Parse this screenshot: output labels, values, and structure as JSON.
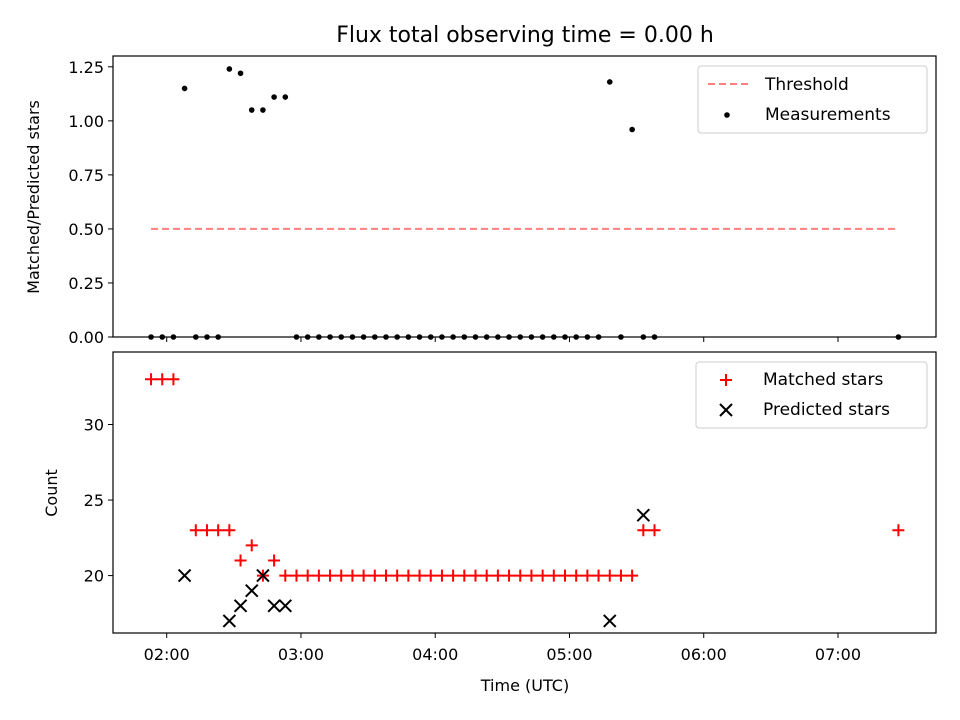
{
  "chart_data": [
    {
      "type": "scatter",
      "title": "Flux total observing time = 0.00 h",
      "xlabel": "",
      "ylabel": "Matched/Predicted stars",
      "xlim_hours": [
        1.6,
        7.73
      ],
      "ylim": [
        0,
        1.3
      ],
      "yticks": [
        0,
        0.25,
        0.5,
        0.75,
        1.0,
        1.25
      ],
      "ytick_labels": [
        "0.00",
        "0.25",
        "0.50",
        "0.75",
        "1.00",
        "1.25"
      ],
      "legend": {
        "placement": "top-right",
        "entries": [
          "Threshold",
          "Measurements"
        ]
      },
      "series": [
        {
          "name": "Threshold",
          "style": "dashed-line",
          "color": "#ff7f7f",
          "x": [
            "01:53",
            "07:27"
          ],
          "y": [
            0.5,
            0.5
          ]
        },
        {
          "name": "Measurements",
          "style": "dot",
          "color": "#000000",
          "x": [
            "01:53",
            "01:58",
            "02:03",
            "02:08",
            "02:13",
            "02:18",
            "02:23",
            "02:28",
            "02:33",
            "02:38",
            "02:43",
            "02:48",
            "02:53",
            "02:58",
            "03:03",
            "03:08",
            "03:13",
            "03:18",
            "03:23",
            "03:28",
            "03:33",
            "03:38",
            "03:43",
            "03:48",
            "03:53",
            "03:58",
            "04:03",
            "04:08",
            "04:13",
            "04:18",
            "04:23",
            "04:28",
            "04:33",
            "04:38",
            "04:43",
            "04:48",
            "04:53",
            "04:58",
            "05:03",
            "05:08",
            "05:13",
            "05:18",
            "05:23",
            "05:28",
            "05:33",
            "05:38",
            "07:27"
          ],
          "y": [
            0,
            0,
            0,
            1.15,
            0,
            0,
            0,
            1.24,
            1.22,
            1.05,
            1.05,
            1.11,
            1.11,
            0,
            0,
            0,
            0,
            0,
            0,
            0,
            0,
            0,
            0,
            0,
            0,
            0,
            0,
            0,
            0,
            0,
            0,
            0,
            0,
            0,
            0,
            0,
            0,
            0,
            0,
            0,
            0,
            1.18,
            0,
            0.96,
            0,
            0,
            0
          ]
        }
      ]
    },
    {
      "type": "scatter",
      "title": "",
      "xlabel": "Time (UTC)",
      "ylabel": "Count",
      "xlim_hours": [
        1.6,
        7.73
      ],
      "ylim": [
        16.2,
        34.8
      ],
      "yticks": [
        20,
        25,
        30
      ],
      "ytick_labels": [
        "20",
        "25",
        "30"
      ],
      "xticks": [
        "02:00",
        "03:00",
        "04:00",
        "05:00",
        "06:00",
        "07:00"
      ],
      "legend": {
        "placement": "top-right",
        "entries": [
          "Matched stars",
          "Predicted stars"
        ]
      },
      "series": [
        {
          "name": "Matched stars",
          "marker": "plus",
          "color": "#ff0000",
          "x": [
            "01:53",
            "01:58",
            "02:03",
            "02:13",
            "02:18",
            "02:23",
            "02:28",
            "02:33",
            "02:38",
            "02:43",
            "02:48",
            "02:53",
            "02:58",
            "03:03",
            "03:08",
            "03:13",
            "03:18",
            "03:23",
            "03:28",
            "03:33",
            "03:38",
            "03:43",
            "03:48",
            "03:53",
            "03:58",
            "04:03",
            "04:08",
            "04:13",
            "04:18",
            "04:23",
            "04:28",
            "04:33",
            "04:38",
            "04:43",
            "04:48",
            "04:53",
            "04:58",
            "05:03",
            "05:08",
            "05:13",
            "05:18",
            "05:23",
            "05:28",
            "05:33",
            "05:38",
            "07:27"
          ],
          "y": [
            33,
            33,
            33,
            23,
            23,
            23,
            23,
            21,
            22,
            20,
            21,
            20,
            20,
            20,
            20,
            20,
            20,
            20,
            20,
            20,
            20,
            20,
            20,
            20,
            20,
            20,
            20,
            20,
            20,
            20,
            20,
            20,
            20,
            20,
            20,
            20,
            20,
            20,
            20,
            20,
            20,
            20,
            20,
            23,
            23,
            23
          ]
        },
        {
          "name": "Predicted stars",
          "marker": "x",
          "color": "#000000",
          "x": [
            "02:08",
            "02:28",
            "02:33",
            "02:38",
            "02:43",
            "02:48",
            "02:53",
            "05:18",
            "05:33"
          ],
          "y": [
            20,
            17,
            18,
            19,
            20,
            18,
            18,
            17,
            24
          ]
        }
      ]
    }
  ]
}
